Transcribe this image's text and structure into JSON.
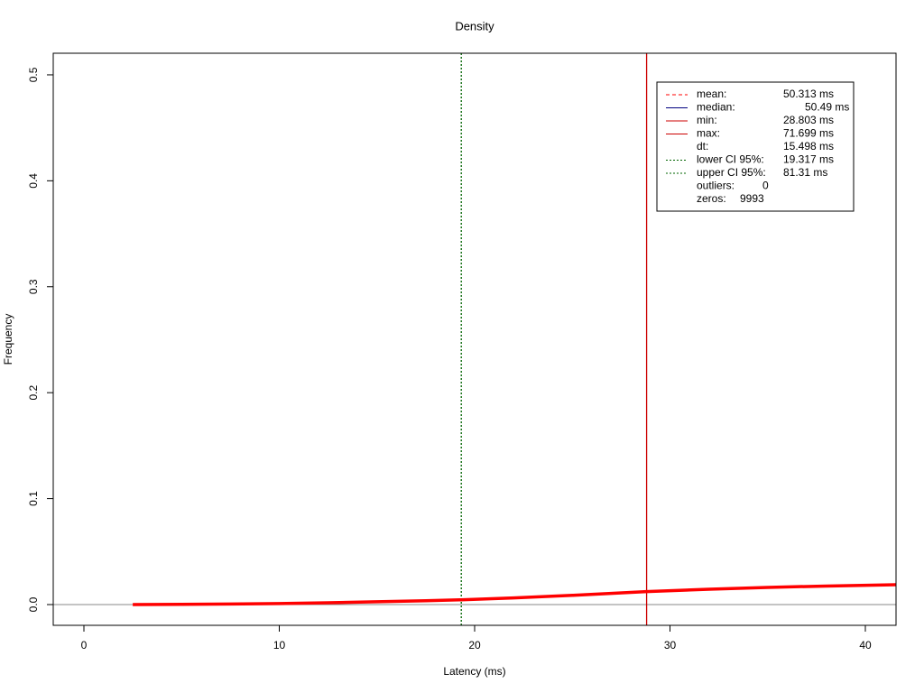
{
  "chart_data": {
    "type": "density",
    "title": "Density",
    "x_label": "Latency (ms)",
    "y_label": "Frequency",
    "xlim": [
      -1.57,
      41.57
    ],
    "ylim": [
      -0.0196,
      0.5204
    ],
    "xticks": [
      0,
      10,
      20,
      30,
      40
    ],
    "yticks": [
      {
        "value": 0,
        "label": "0.0"
      },
      0.1,
      0.2,
      0.3,
      0.4,
      0.5
    ],
    "baseline": 0,
    "series": [
      {
        "color": "#ff0000",
        "x": [
          2.5,
          5,
          7.5,
          10,
          12.5,
          15,
          17.5,
          19.3,
          22,
          25,
          28.8,
          32,
          35,
          38,
          41.6
        ],
        "values": [
          0,
          0.0002,
          0.0005,
          0.001,
          0.0017,
          0.0026,
          0.0036,
          0.0045,
          0.0063,
          0.0087,
          0.0122,
          0.0145,
          0.0162,
          0.0175,
          0.0187
        ]
      }
    ],
    "markers": [
      {
        "label": "mean:",
        "value": 50.313,
        "value_label": "50.313 ms",
        "color": "#ff0000",
        "dash": "4,3"
      },
      {
        "label": "median:",
        "value": 50.49,
        "value_label": "50.49 ms",
        "color": "#000080",
        "dash": "none"
      },
      {
        "label": "min:",
        "value": 28.803,
        "value_label": "28.803 ms",
        "color": "#cc0000",
        "dash": "none"
      },
      {
        "label": "max:",
        "value": 71.699,
        "value_label": "71.699 ms",
        "color": "#cc0000",
        "dash": "none"
      },
      {
        "label": "dt:",
        "value": 15.498,
        "value_label": "15.498 ms"
      },
      {
        "label": "lower CI 95%:",
        "value": 19.317,
        "value_label": "19.317 ms",
        "color": "#006400",
        "dash": "2,2"
      },
      {
        "label": "upper CI 95%:",
        "value": 81.31,
        "value_label": "81.31 ms",
        "color": "#006400",
        "dash": "2,2"
      },
      {
        "label": "outliers:",
        "value": 0,
        "value_label": "0"
      },
      {
        "label": "zeros:",
        "value": 9993,
        "value_label": "9993"
      }
    ]
  }
}
